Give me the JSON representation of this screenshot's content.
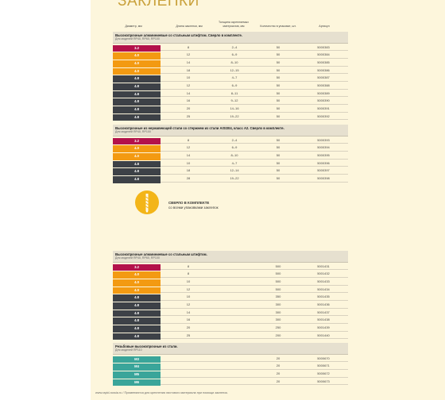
{
  "title": "ЗАКЛЕПКИ",
  "headers": {
    "diameter": "Диаметр, мм",
    "length": "Длина заклепки, мм",
    "thickness": "Толщина скрепляемых материалов, мм",
    "quantity": "Количество в упаковке, шт.",
    "article": "Артикул"
  },
  "sections": [
    {
      "title": "Высокопрочные алюминиевые со стальным штифтом. Сверло в комплекте.",
      "sub": "Для моделей RP40, RP60, RP100",
      "rows": [
        {
          "d": "3.2",
          "c": "mag",
          "l": "8",
          "t": "2–4",
          "q": "50",
          "a": "5000383"
        },
        {
          "d": "4.0",
          "c": "org",
          "l": "12",
          "t": "6–9",
          "q": "50",
          "a": "5000384"
        },
        {
          "d": "4.0",
          "c": "org",
          "l": "14",
          "t": "8–10",
          "q": "50",
          "a": "5000385"
        },
        {
          "d": "4.0",
          "c": "org",
          "l": "18",
          "t": "12–15",
          "q": "50",
          "a": "5000386"
        },
        {
          "d": "4.8",
          "c": "blk",
          "l": "10",
          "t": "4–7",
          "q": "50",
          "a": "5000387"
        },
        {
          "d": "4.8",
          "c": "blk",
          "l": "12",
          "t": "6–9",
          "q": "50",
          "a": "5000388"
        },
        {
          "d": "4.8",
          "c": "blk",
          "l": "14",
          "t": "8–11",
          "q": "50",
          "a": "5000389"
        },
        {
          "d": "4.8",
          "c": "blk",
          "l": "16",
          "t": "9–12",
          "q": "50",
          "a": "5000390"
        },
        {
          "d": "4.8",
          "c": "blk",
          "l": "20",
          "t": "14–16",
          "q": "50",
          "a": "5000391"
        },
        {
          "d": "4.8",
          "c": "blk",
          "l": "25",
          "t": "19–22",
          "q": "50",
          "a": "5000392"
        }
      ]
    },
    {
      "title": "Высокопрочные из нержавеющей стали со стержнем из стали AISI304, класс А2. Сверло в комплекте.",
      "sub": "Для моделей RP40, RP100",
      "rows": [
        {
          "d": "3.2",
          "c": "mag",
          "l": "8",
          "t": "2–4",
          "q": "50",
          "a": "5000393"
        },
        {
          "d": "4.0",
          "c": "org",
          "l": "12",
          "t": "6–9",
          "q": "50",
          "a": "5000394"
        },
        {
          "d": "4.0",
          "c": "org",
          "l": "14",
          "t": "8–10",
          "q": "50",
          "a": "5000395"
        },
        {
          "d": "4.8",
          "c": "blk",
          "l": "10",
          "t": "4–7",
          "q": "50",
          "a": "5000396"
        },
        {
          "d": "4.8",
          "c": "blk",
          "l": "18",
          "t": "12–14",
          "q": "50",
          "a": "5000397"
        },
        {
          "d": "4.8",
          "c": "blk",
          "l": "28",
          "t": "19–22",
          "q": "50",
          "a": "5000398"
        }
      ]
    },
    {
      "title": "Высокопрочные алюминиевые со стальным штифтом.",
      "sub": "Для моделей RP40, RP60, RP100",
      "rows": [
        {
          "d": "3.2",
          "c": "mag",
          "l": "8",
          "t": "",
          "q": "500",
          "a": "5001431"
        },
        {
          "d": "4.0",
          "c": "org",
          "l": "8",
          "t": "",
          "q": "500",
          "a": "5001432"
        },
        {
          "d": "4.0",
          "c": "org",
          "l": "10",
          "t": "",
          "q": "500",
          "a": "5001433"
        },
        {
          "d": "4.0",
          "c": "org",
          "l": "12",
          "t": "",
          "q": "500",
          "a": "5001434"
        },
        {
          "d": "4.8",
          "c": "blk",
          "l": "10",
          "t": "",
          "q": "350",
          "a": "5001435"
        },
        {
          "d": "4.8",
          "c": "blk",
          "l": "12",
          "t": "",
          "q": "300",
          "a": "5001436"
        },
        {
          "d": "4.8",
          "c": "blk",
          "l": "14",
          "t": "",
          "q": "300",
          "a": "5001437"
        },
        {
          "d": "4.8",
          "c": "blk",
          "l": "16",
          "t": "",
          "q": "300",
          "a": "5001438"
        },
        {
          "d": "4.8",
          "c": "blk",
          "l": "20",
          "t": "",
          "q": "250",
          "a": "5001439"
        },
        {
          "d": "4.8",
          "c": "blk",
          "l": "25",
          "t": "",
          "q": "200",
          "a": "5001440"
        }
      ]
    },
    {
      "title": "Резьбовые высокопрочные из стали.",
      "sub": "Для моделей RP110",
      "rows": [
        {
          "d": "M3",
          "c": "teal",
          "l": "",
          "t": "",
          "q": "20",
          "a": "5000670"
        },
        {
          "d": "M4",
          "c": "teal",
          "l": "",
          "t": "",
          "q": "20",
          "a": "5000671"
        },
        {
          "d": "M5",
          "c": "teal",
          "l": "",
          "t": "",
          "q": "20",
          "a": "5000672"
        },
        {
          "d": "M6",
          "c": "teal",
          "l": "",
          "t": "",
          "q": "20",
          "a": "5000673"
        }
      ]
    }
  ],
  "badge": {
    "line1": "СВЕРЛО В КОМПЛЕКТЕ",
    "line2": "со всеми упаковками заклепок",
    "icon": "drill-bit-icon"
  },
  "footer": "www.rapid-russia.ru  /  Применяются для крепления листового материала при помощи заклепок."
}
